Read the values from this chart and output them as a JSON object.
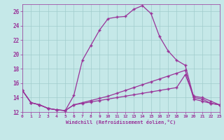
{
  "bg_color": "#c5e8e8",
  "grid_color": "#a0cccc",
  "line_color": "#993399",
  "xlim": [
    0,
    23
  ],
  "ylim": [
    12,
    27
  ],
  "xticks": [
    0,
    1,
    2,
    3,
    4,
    5,
    6,
    7,
    8,
    9,
    10,
    11,
    12,
    13,
    14,
    15,
    16,
    17,
    18,
    19,
    20,
    21,
    22,
    23
  ],
  "yticks": [
    12,
    14,
    16,
    18,
    20,
    22,
    24,
    26
  ],
  "line1_x": [
    0,
    1,
    2,
    3,
    4,
    5,
    6,
    7,
    8,
    9,
    10,
    11,
    12,
    13,
    14,
    15,
    16,
    17,
    18,
    19,
    20,
    21,
    22,
    23
  ],
  "line1_y": [
    15.0,
    13.3,
    13.0,
    12.5,
    12.3,
    12.2,
    14.3,
    19.2,
    21.3,
    23.4,
    25.0,
    25.2,
    25.3,
    26.3,
    26.8,
    25.7,
    22.5,
    20.5,
    19.2,
    18.5,
    14.0,
    13.8,
    13.2,
    13.0
  ],
  "line2_x": [
    0,
    1,
    2,
    3,
    4,
    5,
    6,
    7,
    8,
    9,
    10,
    11,
    12,
    13,
    14,
    15,
    16,
    17,
    18,
    19,
    20,
    21,
    22,
    23
  ],
  "line2_y": [
    15.0,
    13.3,
    13.0,
    12.5,
    12.3,
    12.2,
    13.0,
    13.3,
    13.6,
    13.9,
    14.2,
    14.6,
    15.0,
    15.4,
    15.8,
    16.2,
    16.6,
    17.0,
    17.4,
    17.8,
    13.8,
    13.5,
    13.2,
    13.0
  ],
  "line3_x": [
    0,
    1,
    2,
    3,
    4,
    5,
    6,
    7,
    8,
    9,
    10,
    11,
    12,
    13,
    14,
    15,
    16,
    17,
    18,
    19,
    20,
    21,
    22,
    23
  ],
  "line3_y": [
    15.0,
    13.3,
    13.0,
    12.5,
    12.3,
    12.2,
    13.0,
    13.2,
    13.4,
    13.6,
    13.8,
    14.0,
    14.2,
    14.4,
    14.6,
    14.8,
    15.0,
    15.2,
    15.4,
    17.2,
    14.2,
    14.0,
    13.5,
    13.0
  ],
  "xlabel": "Windchill (Refroidissement éolien,°C)"
}
